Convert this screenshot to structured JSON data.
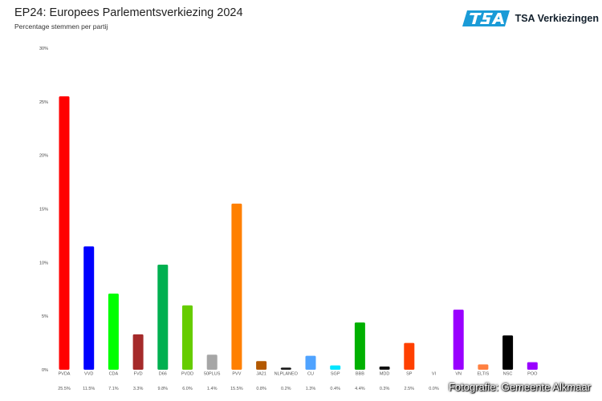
{
  "chart_data": {
    "type": "bar",
    "title": "EP24: Europees Parlementsverkiezing 2024",
    "subtitle": "Percentage stemmen per partij",
    "ylim": [
      0,
      30
    ],
    "yticks": [
      "0%",
      "5%",
      "10%",
      "15%",
      "20%",
      "25%",
      "30%"
    ],
    "grid": false,
    "categories": [
      "PVDA",
      "VVD",
      "CDA",
      "FVD",
      "D66",
      "PVDD",
      "50PLUS",
      "PVV",
      "JA21",
      "NLPLANEO",
      "CU",
      "SGP",
      "BBB",
      "MDD",
      "SP",
      "VI",
      "VN",
      "ELTIS",
      "NSC",
      "POO"
    ],
    "values": [
      25.5,
      11.5,
      7.1,
      3.3,
      9.8,
      6.0,
      1.4,
      15.5,
      0.8,
      0.2,
      1.3,
      0.4,
      4.4,
      0.3,
      2.5,
      0.0,
      5.6,
      0.5,
      3.2,
      0.7
    ],
    "value_labels": [
      "25.5%",
      "11.5%",
      "7.1%",
      "3.3%",
      "9.8%",
      "6.0%",
      "1.4%",
      "15.5%",
      "0.8%",
      "0.2%",
      "1.3%",
      "0.4%",
      "4.4%",
      "0.3%",
      "2.5%",
      "0.0%",
      "5.6%",
      "0.5%",
      "3.2%",
      "0.7%"
    ],
    "colors": [
      "#ff0000",
      "#0000ff",
      "#00ff00",
      "#a52a2a",
      "#00b050",
      "#66cc00",
      "#a6a6a6",
      "#ff8000",
      "#b35900",
      "#1a1a1a",
      "#4fa3ff",
      "#00e5ff",
      "#00b000",
      "#111111",
      "#ff4000",
      "#888888",
      "#9900ff",
      "#ff8040",
      "#000000",
      "#9900ff"
    ]
  },
  "brand": {
    "name": "TSA Verkiezingen",
    "logo_color": "#1a9bd7"
  },
  "caption": "Fotografie: Gemeente Alkmaar"
}
